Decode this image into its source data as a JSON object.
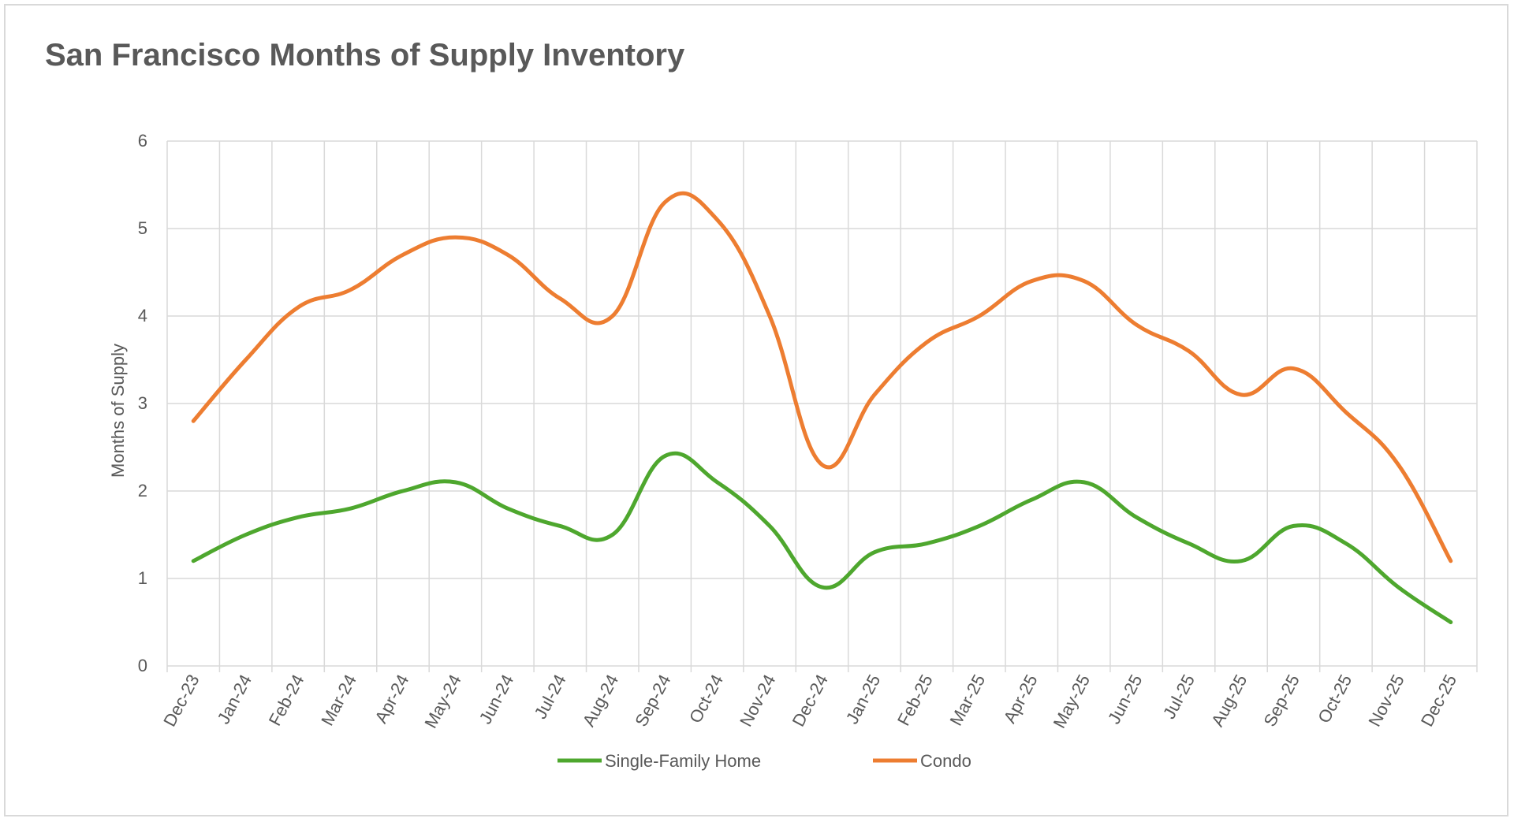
{
  "chart_data": {
    "type": "line",
    "title": "San Francisco Months of Supply Inventory",
    "ylabel": "Months of Supply",
    "xlabel": "",
    "ylim": [
      0,
      6
    ],
    "yticks": [
      "0",
      "1",
      "2",
      "3",
      "4",
      "5",
      "6"
    ],
    "grid": true,
    "legend_position": "bottom",
    "categories": [
      "Dec-23",
      "Jan-24",
      "Feb-24",
      "Mar-24",
      "Apr-24",
      "May-24",
      "Jun-24",
      "Jul-24",
      "Aug-24",
      "Sep-24",
      "Oct-24",
      "Nov-24",
      "Dec-24",
      "Jan-25",
      "Feb-25",
      "Mar-25",
      "Apr-25",
      "May-25",
      "Jun-25",
      "Jul-25",
      "Aug-25",
      "Sep-25",
      "Oct-25",
      "Nov-25",
      "Dec-25"
    ],
    "series": [
      {
        "name": "Single-Family Home",
        "color": "#4ea72e",
        "values": [
          1.2,
          1.5,
          1.7,
          1.8,
          2.0,
          2.1,
          1.8,
          1.6,
          1.5,
          2.4,
          2.1,
          1.6,
          0.9,
          1.3,
          1.4,
          1.6,
          1.9,
          2.1,
          1.7,
          1.4,
          1.2,
          1.6,
          1.4,
          0.9,
          0.5
        ]
      },
      {
        "name": "Condo",
        "color": "#ed7d31",
        "values": [
          2.8,
          3.5,
          4.1,
          4.3,
          4.7,
          4.9,
          4.7,
          4.2,
          4.0,
          5.3,
          5.1,
          4.0,
          2.3,
          3.1,
          3.7,
          4.0,
          4.4,
          4.4,
          3.9,
          3.6,
          3.1,
          3.4,
          2.9,
          2.3,
          1.2
        ]
      }
    ]
  }
}
